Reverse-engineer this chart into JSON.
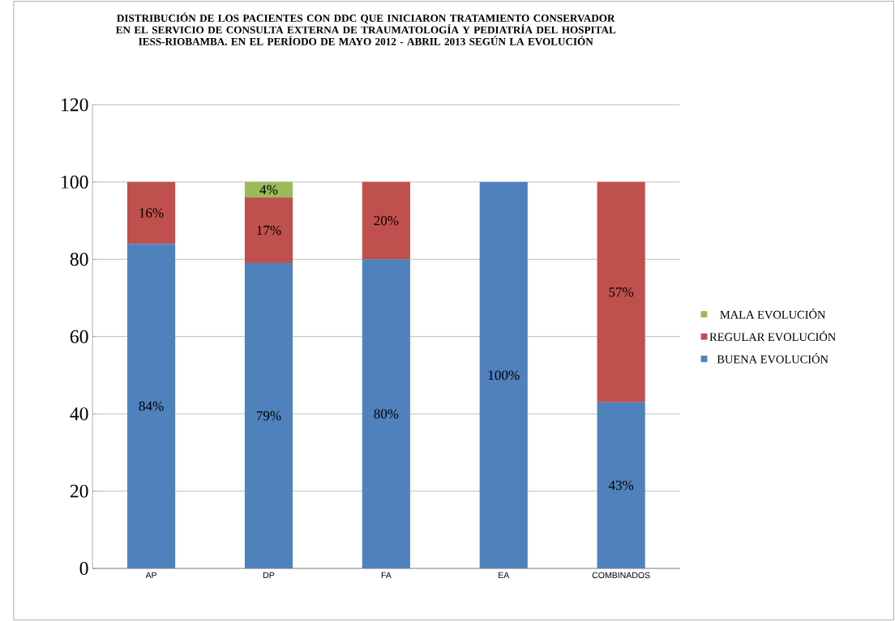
{
  "chart_data": {
    "type": "bar",
    "stacked": true,
    "title": "DISTRIBUCIÓN DE LOS PACIENTES CON DDC QUE INICIARON TRATAMIENTO CONSERVADOR EN EL SERVICIO DE CONSULTA EXTERNA DE TRAUMATOLOGÍA Y PEDIATRÍA DEL HOSPITAL IESS-RIOBAMBA. EN EL PERÍODO DE MAYO 2012 - ABRIL 2013 SEGÚN LA EVOLUCIÓN",
    "categories": [
      "AP",
      "DP",
      "FA",
      "EA",
      "COMBINADOS"
    ],
    "series": [
      {
        "name": "BUENA EVOLUCIÓN",
        "color": "#4f81bd",
        "values": [
          84,
          79,
          80,
          100,
          43
        ],
        "value_labels": [
          "84%",
          "79%",
          "80%",
          "100%",
          "43%"
        ]
      },
      {
        "name": "REGULAR EVOLUCIÓN",
        "color": "#c0504d",
        "values": [
          16,
          17,
          20,
          0,
          57
        ],
        "value_labels": [
          "16%",
          "17%",
          "20%",
          null,
          "57%"
        ]
      },
      {
        "name": "MALA EVOLUCIÓN",
        "color": "#9bbb59",
        "values": [
          0,
          4,
          0,
          0,
          0
        ],
        "value_labels": [
          null,
          "4%",
          null,
          null,
          null
        ]
      }
    ],
    "ylim": [
      0,
      120
    ],
    "yticks": [
      0,
      20,
      40,
      60,
      80,
      100,
      120
    ],
    "grid": "y",
    "legend": "right"
  }
}
